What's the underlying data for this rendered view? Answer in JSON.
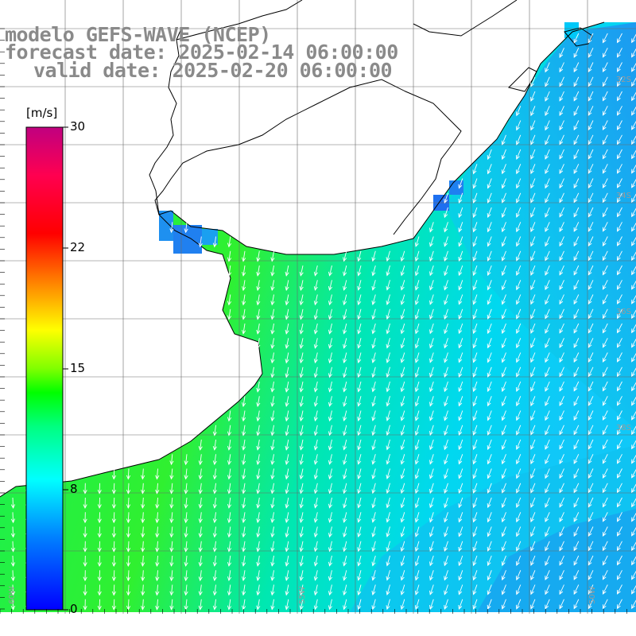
{
  "title": {
    "model": "modelo GEFS-WAVE (NCEP)",
    "forecast": "forecast date: 2025-02-14 06:00:00",
    "valid": "valid date: 2025-02-20 06:00:00"
  },
  "colorbar": {
    "unit": "[m/s]",
    "ticks": [
      "30",
      "22",
      "15",
      "8",
      "0"
    ],
    "tick_values": [
      30,
      22,
      15,
      8,
      0
    ],
    "min": 0,
    "max": 30,
    "colors": [
      "#0000ff",
      "#00b0ff",
      "#00ffff",
      "#00ff40",
      "#40ff00",
      "#ffff00",
      "#ff8000",
      "#ff0000",
      "#ff0060",
      "#c00080"
    ]
  },
  "grid": {
    "lat_labels": [
      "32S",
      "34S",
      "36S",
      "38S"
    ],
    "lon_labels": [
      "60W",
      "55W",
      "50W"
    ]
  },
  "legend_icons": {
    "arrow": "wind-arrow-icon"
  }
}
